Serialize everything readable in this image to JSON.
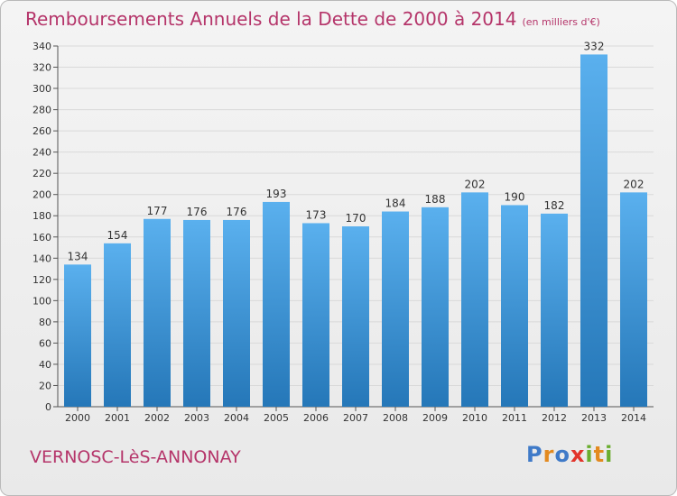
{
  "header": {
    "title": "Remboursements Annuels de la Dette de 2000 à 2014",
    "subtitle": "(en milliers d'€)"
  },
  "footer": {
    "town": "VERNOSC-LèS-ANNONAY",
    "logo": "Proxiti"
  },
  "colors": {
    "title": "#b5356a",
    "bar_light": "#5ab0ee",
    "bar_dark": "#2577b8",
    "grid": "#d9d9d9"
  },
  "chart_data": {
    "type": "bar",
    "title": "Remboursements Annuels de la Dette de 2000 à 2014",
    "subtitle": "(en milliers d'€)",
    "categories": [
      "2000",
      "2001",
      "2002",
      "2003",
      "2004",
      "2005",
      "2006",
      "2007",
      "2008",
      "2009",
      "2010",
      "2011",
      "2012",
      "2013",
      "2014"
    ],
    "values": [
      134,
      154,
      177,
      176,
      176,
      193,
      173,
      170,
      184,
      188,
      202,
      190,
      182,
      332,
      202
    ],
    "ylim": [
      0,
      340
    ],
    "yticks": [
      0,
      20,
      40,
      60,
      80,
      100,
      120,
      140,
      160,
      180,
      200,
      220,
      240,
      260,
      280,
      300,
      320,
      340
    ],
    "grid": true,
    "xlabel": "",
    "ylabel": ""
  }
}
